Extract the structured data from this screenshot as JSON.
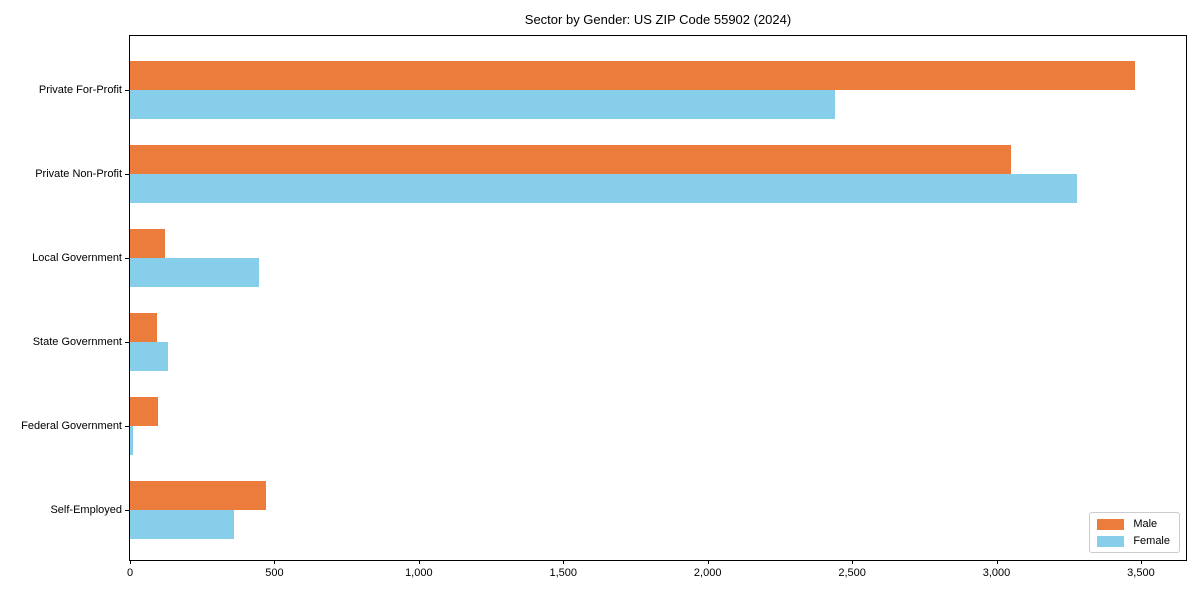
{
  "title": "Sector by Gender: US ZIP Code 55902 (2024)",
  "chart_data": {
    "type": "bar",
    "orientation": "horizontal",
    "title": "Sector by Gender: US ZIP Code 55902 (2024)",
    "categories": [
      "Private For-Profit",
      "Private Non-Profit",
      "Local Government",
      "State Government",
      "Federal Government",
      "Self-Employed"
    ],
    "series": [
      {
        "name": "Male",
        "color": "#eb7c3c",
        "values": [
          3480,
          3050,
          122,
          95,
          98,
          470
        ]
      },
      {
        "name": "Female",
        "color": "#87ceeb",
        "values": [
          2440,
          3280,
          445,
          130,
          10,
          360
        ]
      }
    ],
    "xlabel": "",
    "ylabel": "",
    "xlim": [
      0,
      3656
    ],
    "xticks": [
      0,
      500,
      1000,
      1500,
      2000,
      2500,
      3000,
      3500
    ],
    "xtick_labels": [
      "0",
      "500",
      "1,000",
      "1,500",
      "2,000",
      "2,500",
      "3,000",
      "3,500"
    ],
    "grid": false,
    "legend_position": "lower right",
    "axis_color": "#000000",
    "text_color": "#000000",
    "background_color": "#ffffff"
  }
}
